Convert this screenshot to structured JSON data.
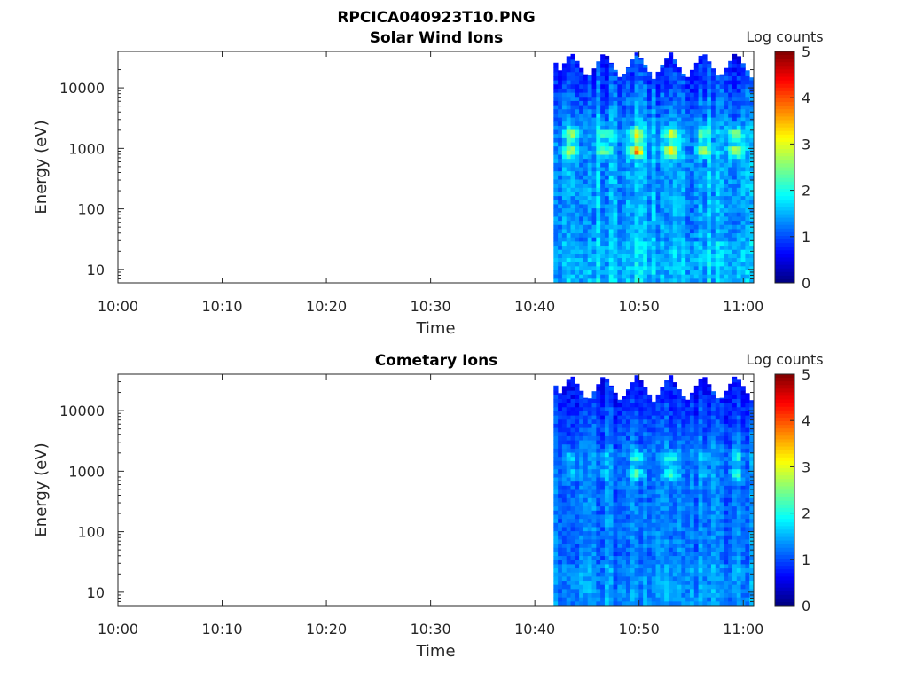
{
  "figure_title": "RPCICA040923T10.PNG",
  "chart_data": [
    {
      "type": "heatmap",
      "title": "Solar Wind Ions",
      "xlabel": "Time",
      "ylabel": "Energy (eV)",
      "x_ticks": [
        "10:00",
        "10:10",
        "10:20",
        "10:30",
        "10:40",
        "10:50",
        "11:00"
      ],
      "x_range_minutes": [
        0,
        61
      ],
      "y_scale": "log",
      "y_ticks": [
        10,
        100,
        1000,
        10000
      ],
      "y_tick_labels": [
        "10",
        "100",
        "1000",
        "10000"
      ],
      "y_range": [
        6,
        40000
      ],
      "data_start_minute": 41.8,
      "data_end_minute": 61,
      "colorbar": {
        "label": "Log counts",
        "range": [
          0,
          5
        ],
        "ticks": [
          "0",
          "1",
          "2",
          "3",
          "4",
          "5"
        ],
        "colormap": "jet"
      },
      "peak_minutes": [
        43.5,
        46.6,
        49.8,
        53.1,
        56.2,
        59.3
      ],
      "peak_energies_eV": [
        900,
        1700
      ],
      "peak_log_counts": [
        3.0,
        2.8,
        3.6,
        3.6,
        2.8,
        3.2
      ],
      "grid": false
    },
    {
      "type": "heatmap",
      "title": "Cometary Ions",
      "xlabel": "Time",
      "ylabel": "Energy (eV)",
      "x_ticks": [
        "10:00",
        "10:10",
        "10:20",
        "10:30",
        "10:40",
        "10:50",
        "11:00"
      ],
      "x_range_minutes": [
        0,
        61
      ],
      "y_scale": "log",
      "y_ticks": [
        10,
        100,
        1000,
        10000
      ],
      "y_tick_labels": [
        "10",
        "100",
        "1000",
        "10000"
      ],
      "y_range": [
        6,
        40000
      ],
      "data_start_minute": 41.8,
      "data_end_minute": 61,
      "colorbar": {
        "label": "Log counts",
        "range": [
          0,
          5
        ],
        "ticks": [
          "0",
          "1",
          "2",
          "3",
          "4",
          "5"
        ],
        "colormap": "jet"
      },
      "peak_minutes": [
        43.5,
        46.6,
        49.8,
        53.1,
        56.2,
        59.3
      ],
      "peak_energies_eV": [
        900,
        1700
      ],
      "peak_log_counts": [
        2.3,
        2.0,
        2.8,
        2.8,
        2.0,
        2.5
      ],
      "grid": false
    }
  ]
}
